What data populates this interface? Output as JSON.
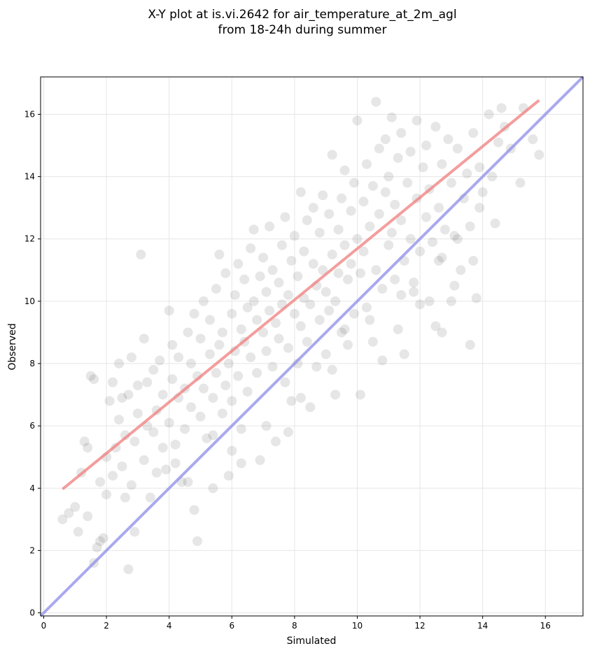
{
  "chart_data": {
    "type": "scatter",
    "title_line1": "X-Y plot at is.vi.2642 for air_temperature_at_2m_agl",
    "title_line2": "from 18-24h during summer",
    "xlabel": "Simulated",
    "ylabel": "Observed",
    "xlim": [
      -0.1,
      17.2
    ],
    "ylim": [
      -0.1,
      17.2
    ],
    "xticks": [
      0,
      2,
      4,
      6,
      8,
      10,
      12,
      14,
      16
    ],
    "yticks": [
      0,
      2,
      4,
      6,
      8,
      10,
      12,
      14,
      16
    ],
    "grid": true,
    "point_color": "#555555",
    "point_opacity": 0.15,
    "series": [
      {
        "values_note_removed": true,
        "points": [
          [
            0.6,
            3.0
          ],
          [
            0.8,
            3.2
          ],
          [
            1.0,
            3.4
          ],
          [
            1.1,
            2.6
          ],
          [
            1.2,
            4.5
          ],
          [
            1.3,
            5.5
          ],
          [
            1.4,
            3.1
          ],
          [
            1.4,
            5.3
          ],
          [
            1.5,
            7.6
          ],
          [
            1.6,
            7.5
          ],
          [
            1.6,
            1.6
          ],
          [
            1.7,
            2.1
          ],
          [
            1.8,
            2.3
          ],
          [
            1.8,
            4.2
          ],
          [
            1.9,
            2.4
          ],
          [
            2.0,
            3.8
          ],
          [
            2.0,
            5.0
          ],
          [
            2.1,
            6.8
          ],
          [
            2.2,
            4.4
          ],
          [
            2.2,
            7.4
          ],
          [
            2.3,
            5.3
          ],
          [
            2.4,
            6.2
          ],
          [
            2.4,
            8.0
          ],
          [
            2.5,
            4.7
          ],
          [
            2.5,
            6.9
          ],
          [
            2.6,
            5.7
          ],
          [
            2.7,
            7.0
          ],
          [
            2.7,
            1.4
          ],
          [
            2.8,
            8.2
          ],
          [
            2.8,
            4.1
          ],
          [
            2.9,
            5.5
          ],
          [
            2.9,
            2.6
          ],
          [
            3.0,
            7.3
          ],
          [
            3.0,
            6.4
          ],
          [
            3.1,
            11.5
          ],
          [
            3.2,
            8.8
          ],
          [
            3.2,
            4.9
          ],
          [
            3.3,
            7.4
          ],
          [
            3.3,
            6.0
          ],
          [
            3.4,
            3.7
          ],
          [
            3.5,
            5.8
          ],
          [
            3.5,
            7.8
          ],
          [
            3.6,
            6.5
          ],
          [
            3.7,
            8.1
          ],
          [
            3.8,
            5.3
          ],
          [
            3.8,
            7.0
          ],
          [
            3.9,
            4.6
          ],
          [
            4.0,
            9.7
          ],
          [
            4.0,
            6.1
          ],
          [
            4.1,
            8.6
          ],
          [
            4.1,
            7.5
          ],
          [
            4.2,
            5.4
          ],
          [
            4.3,
            6.9
          ],
          [
            4.3,
            8.2
          ],
          [
            4.4,
            4.2
          ],
          [
            4.5,
            7.2
          ],
          [
            4.5,
            5.9
          ],
          [
            4.6,
            9.0
          ],
          [
            4.7,
            6.6
          ],
          [
            4.7,
            8.0
          ],
          [
            4.8,
            9.6
          ],
          [
            4.8,
            3.3
          ],
          [
            4.9,
            7.6
          ],
          [
            4.9,
            2.3
          ],
          [
            5.0,
            6.3
          ],
          [
            5.0,
            8.8
          ],
          [
            5.1,
            10.0
          ],
          [
            5.1,
            7.2
          ],
          [
            5.2,
            5.6
          ],
          [
            5.3,
            8.3
          ],
          [
            5.3,
            9.4
          ],
          [
            5.4,
            6.9
          ],
          [
            5.4,
            4.0
          ],
          [
            5.5,
            10.4
          ],
          [
            5.5,
            7.7
          ],
          [
            5.6,
            8.6
          ],
          [
            5.6,
            11.5
          ],
          [
            5.7,
            6.4
          ],
          [
            5.7,
            9.0
          ],
          [
            5.8,
            10.9
          ],
          [
            5.8,
            7.3
          ],
          [
            5.9,
            8.0
          ],
          [
            5.9,
            4.4
          ],
          [
            6.0,
            9.6
          ],
          [
            6.0,
            6.8
          ],
          [
            6.1,
            10.2
          ],
          [
            6.1,
            8.4
          ],
          [
            6.2,
            11.2
          ],
          [
            6.2,
            7.6
          ],
          [
            6.3,
            9.1
          ],
          [
            6.3,
            5.9
          ],
          [
            6.4,
            10.7
          ],
          [
            6.4,
            8.7
          ],
          [
            6.5,
            9.8
          ],
          [
            6.5,
            7.1
          ],
          [
            6.6,
            11.7
          ],
          [
            6.6,
            8.2
          ],
          [
            6.7,
            10.0
          ],
          [
            6.7,
            12.3
          ],
          [
            6.8,
            9.4
          ],
          [
            6.8,
            7.7
          ],
          [
            6.9,
            10.8
          ],
          [
            6.9,
            4.9
          ],
          [
            7.0,
            9.0
          ],
          [
            7.0,
            11.4
          ],
          [
            7.1,
            8.4
          ],
          [
            7.1,
            10.3
          ],
          [
            7.2,
            9.7
          ],
          [
            7.2,
            12.4
          ],
          [
            7.3,
            7.9
          ],
          [
            7.3,
            11.0
          ],
          [
            7.4,
            9.3
          ],
          [
            7.4,
            5.5
          ],
          [
            7.5,
            10.6
          ],
          [
            7.5,
            8.8
          ],
          [
            7.6,
            11.8
          ],
          [
            7.6,
            9.9
          ],
          [
            7.7,
            7.4
          ],
          [
            7.7,
            12.7
          ],
          [
            7.8,
            10.2
          ],
          [
            7.8,
            8.5
          ],
          [
            7.9,
            11.3
          ],
          [
            7.9,
            6.8
          ],
          [
            8.0,
            9.6
          ],
          [
            8.0,
            12.1
          ],
          [
            8.1,
            10.8
          ],
          [
            8.1,
            8.0
          ],
          [
            8.2,
            13.5
          ],
          [
            8.2,
            9.2
          ],
          [
            8.3,
            11.6
          ],
          [
            8.3,
            10.1
          ],
          [
            8.4,
            12.6
          ],
          [
            8.4,
            8.7
          ],
          [
            8.5,
            9.9
          ],
          [
            8.5,
            6.6
          ],
          [
            8.6,
            11.2
          ],
          [
            8.6,
            13.0
          ],
          [
            8.7,
            10.5
          ],
          [
            8.7,
            7.9
          ],
          [
            8.8,
            12.2
          ],
          [
            8.8,
            9.4
          ],
          [
            8.9,
            11.0
          ],
          [
            8.9,
            13.4
          ],
          [
            9.0,
            10.3
          ],
          [
            9.0,
            8.3
          ],
          [
            9.1,
            12.8
          ],
          [
            9.1,
            9.7
          ],
          [
            9.2,
            11.5
          ],
          [
            9.2,
            14.7
          ],
          [
            9.3,
            10.0
          ],
          [
            9.3,
            7.0
          ],
          [
            9.4,
            12.3
          ],
          [
            9.4,
            10.9
          ],
          [
            9.5,
            13.3
          ],
          [
            9.5,
            9.0
          ],
          [
            9.6,
            11.8
          ],
          [
            9.6,
            14.2
          ],
          [
            9.7,
            10.7
          ],
          [
            9.7,
            8.6
          ],
          [
            9.8,
            12.9
          ],
          [
            9.8,
            11.2
          ],
          [
            9.9,
            13.8
          ],
          [
            9.9,
            9.6
          ],
          [
            10.0,
            12.0
          ],
          [
            10.0,
            15.8
          ],
          [
            10.1,
            10.9
          ],
          [
            10.1,
            7.0
          ],
          [
            10.2,
            13.2
          ],
          [
            10.2,
            11.6
          ],
          [
            10.3,
            14.4
          ],
          [
            10.3,
            9.8
          ],
          [
            10.4,
            12.4
          ],
          [
            10.5,
            8.7
          ],
          [
            10.5,
            13.7
          ],
          [
            10.6,
            16.4
          ],
          [
            10.6,
            11.0
          ],
          [
            10.7,
            14.9
          ],
          [
            10.7,
            12.8
          ],
          [
            10.8,
            8.1
          ],
          [
            10.8,
            10.4
          ],
          [
            10.9,
            13.5
          ],
          [
            10.9,
            15.2
          ],
          [
            11.0,
            11.8
          ],
          [
            11.0,
            14.0
          ],
          [
            11.1,
            12.2
          ],
          [
            11.1,
            15.9
          ],
          [
            11.2,
            10.7
          ],
          [
            11.2,
            13.1
          ],
          [
            11.3,
            14.6
          ],
          [
            11.3,
            9.1
          ],
          [
            11.4,
            12.6
          ],
          [
            11.4,
            15.4
          ],
          [
            11.5,
            11.3
          ],
          [
            11.5,
            8.3
          ],
          [
            11.6,
            13.8
          ],
          [
            11.7,
            12.0
          ],
          [
            11.7,
            14.8
          ],
          [
            11.8,
            10.3
          ],
          [
            11.9,
            13.3
          ],
          [
            11.9,
            15.8
          ],
          [
            12.0,
            11.6
          ],
          [
            12.0,
            9.9
          ],
          [
            12.1,
            14.3
          ],
          [
            12.2,
            12.7
          ],
          [
            12.2,
            15.0
          ],
          [
            12.3,
            10.0
          ],
          [
            12.3,
            13.6
          ],
          [
            12.4,
            11.9
          ],
          [
            12.5,
            15.6
          ],
          [
            12.5,
            9.2
          ],
          [
            12.6,
            13.0
          ],
          [
            12.6,
            11.3
          ],
          [
            12.7,
            14.4
          ],
          [
            12.7,
            9.0
          ],
          [
            12.8,
            12.3
          ],
          [
            12.9,
            15.2
          ],
          [
            13.0,
            10.0
          ],
          [
            13.0,
            13.8
          ],
          [
            13.1,
            12.1
          ],
          [
            13.1,
            10.5
          ],
          [
            13.2,
            14.9
          ],
          [
            13.3,
            11.0
          ],
          [
            13.4,
            13.3
          ],
          [
            13.5,
            14.1
          ],
          [
            13.6,
            12.4
          ],
          [
            13.6,
            8.6
          ],
          [
            13.7,
            15.4
          ],
          [
            13.7,
            11.3
          ],
          [
            13.8,
            10.1
          ],
          [
            13.9,
            14.3
          ],
          [
            14.0,
            13.5
          ],
          [
            14.2,
            16.0
          ],
          [
            14.3,
            14.0
          ],
          [
            14.4,
            12.5
          ],
          [
            14.5,
            15.1
          ],
          [
            14.6,
            16.2
          ],
          [
            14.7,
            15.6
          ],
          [
            14.9,
            14.9
          ],
          [
            15.2,
            13.8
          ],
          [
            15.3,
            16.2
          ],
          [
            15.6,
            15.2
          ],
          [
            15.8,
            14.7
          ],
          [
            2.6,
            3.7
          ],
          [
            3.6,
            4.5
          ],
          [
            4.2,
            4.8
          ],
          [
            4.6,
            4.2
          ],
          [
            5.4,
            5.7
          ],
          [
            6.0,
            5.2
          ],
          [
            6.3,
            4.8
          ],
          [
            7.1,
            6.0
          ],
          [
            7.8,
            5.8
          ],
          [
            8.2,
            6.9
          ],
          [
            9.2,
            7.8
          ],
          [
            9.6,
            9.1
          ],
          [
            10.4,
            9.4
          ],
          [
            11.4,
            10.2
          ],
          [
            11.8,
            10.6
          ],
          [
            12.7,
            11.4
          ],
          [
            13.2,
            12.0
          ],
          [
            13.9,
            13.0
          ]
        ]
      }
    ],
    "fit_line": {
      "x": [
        0.6,
        15.8
      ],
      "y": [
        3.97,
        16.45
      ],
      "color": "#f07c7c"
    },
    "identity_line": {
      "x": [
        -0.1,
        17.2
      ],
      "y": [
        -0.1,
        17.2
      ],
      "color": "#8c8ce8"
    }
  }
}
